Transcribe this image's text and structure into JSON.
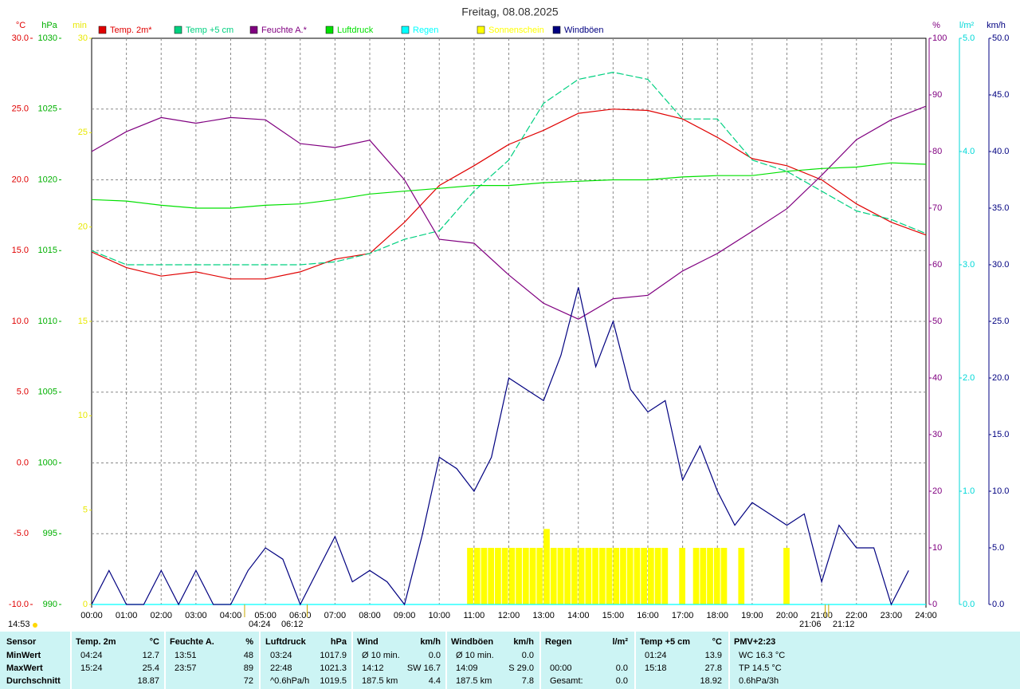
{
  "chart_data": {
    "type": "line",
    "title": "Freitag, 08.08.2025",
    "grid": true,
    "xlim": [
      0,
      24
    ],
    "xticks": [
      {
        "value": 0,
        "label": "00:00"
      },
      {
        "value": 1,
        "label": "01:00"
      },
      {
        "value": 2,
        "label": "02:00"
      },
      {
        "value": 3,
        "label": "03:00"
      },
      {
        "value": 4,
        "label": "04:00"
      },
      {
        "value": 5,
        "label": "05:00"
      },
      {
        "value": 6,
        "label": "06:00"
      },
      {
        "value": 7,
        "label": "07:00"
      },
      {
        "value": 8,
        "label": "08:00"
      },
      {
        "value": 9,
        "label": "09:00"
      },
      {
        "value": 10,
        "label": "10:00"
      },
      {
        "value": 11,
        "label": "11:00"
      },
      {
        "value": 12,
        "label": "12:00"
      },
      {
        "value": 13,
        "label": "13:00"
      },
      {
        "value": 14,
        "label": "14:00"
      },
      {
        "value": 15,
        "label": "15:00"
      },
      {
        "value": 16,
        "label": "16:00"
      },
      {
        "value": 17,
        "label": "17:00"
      },
      {
        "value": 18,
        "label": "18:00"
      },
      {
        "value": 19,
        "label": "19:00"
      },
      {
        "value": 20,
        "label": "20:00"
      },
      {
        "value": 21,
        "label": "21:00"
      },
      {
        "value": 22,
        "label": "22:00"
      },
      {
        "value": 23,
        "label": "23:00"
      },
      {
        "value": 24,
        "label": "24:00"
      }
    ],
    "x": [
      0,
      1,
      2,
      3,
      4,
      5,
      6,
      7,
      8,
      9,
      10,
      11,
      12,
      13,
      14,
      15,
      16,
      17,
      18,
      19,
      20,
      21,
      22,
      23,
      24
    ],
    "axes": {
      "temp": {
        "title": "°C",
        "side": "left",
        "color": "#e00000",
        "ylim": [
          -10,
          30
        ],
        "yticks": [
          {
            "value": -10,
            "label": "-10.0"
          },
          {
            "value": -5,
            "label": "-5.0"
          },
          {
            "value": 0,
            "label": "0.0"
          },
          {
            "value": 5,
            "label": "5.0"
          },
          {
            "value": 10,
            "label": "10.0"
          },
          {
            "value": 15,
            "label": "15.0"
          },
          {
            "value": 20,
            "label": "20.0"
          },
          {
            "value": 25,
            "label": "25.0"
          },
          {
            "value": 30,
            "label": "30.0"
          }
        ]
      },
      "press": {
        "title": "hPa",
        "side": "left",
        "color": "#00b000",
        "ylim": [
          990,
          1030
        ],
        "yticks": [
          990,
          995,
          1000,
          1005,
          1010,
          1015,
          1020,
          1025,
          1030
        ]
      },
      "sun": {
        "title": "min",
        "side": "left",
        "color": "#e8e800",
        "ylim": [
          0,
          30
        ],
        "yticks": [
          0,
          5,
          10,
          15,
          20,
          25,
          30
        ]
      },
      "hum": {
        "title": "%",
        "side": "right",
        "color": "#800080",
        "ylim": [
          0,
          100
        ],
        "yticks": [
          0,
          10,
          20,
          30,
          40,
          50,
          60,
          70,
          80,
          90,
          100
        ]
      },
      "rain": {
        "title": "l/m²",
        "side": "right",
        "color": "#00d8d8",
        "ylim": [
          0,
          5
        ],
        "yticks": [
          {
            "value": 0,
            "label": "0.0"
          },
          {
            "value": 1,
            "label": "1.0"
          },
          {
            "value": 2,
            "label": "2.0"
          },
          {
            "value": 3,
            "label": "3.0"
          },
          {
            "value": 4,
            "label": "4.0"
          },
          {
            "value": 5,
            "label": "5.0"
          }
        ]
      },
      "wind": {
        "title": "km/h",
        "side": "right",
        "color": "#000080",
        "ylim": [
          0,
          50
        ],
        "yticks": [
          {
            "value": 0,
            "label": "0.0"
          },
          {
            "value": 5,
            "label": "5.0"
          },
          {
            "value": 10,
            "label": "10.0"
          },
          {
            "value": 15,
            "label": "15.0"
          },
          {
            "value": 20,
            "label": "20.0"
          },
          {
            "value": 25,
            "label": "25.0"
          },
          {
            "value": 30,
            "label": "30.0"
          },
          {
            "value": 35,
            "label": "35.0"
          },
          {
            "value": 40,
            "label": "40.0"
          },
          {
            "value": 45,
            "label": "45.0"
          },
          {
            "value": 50,
            "label": "50.0"
          }
        ]
      }
    },
    "series": [
      {
        "name": "Temp. 2m*",
        "color": "#e00000",
        "axis": "temp",
        "style": "line",
        "values": [
          14.9,
          13.8,
          13.2,
          13.5,
          13.0,
          13.0,
          13.5,
          14.4,
          14.8,
          17.0,
          19.6,
          21.0,
          22.5,
          23.5,
          24.7,
          25.0,
          24.9,
          24.3,
          23.0,
          21.5,
          21.0,
          20.0,
          18.3,
          17.0,
          16.1
        ]
      },
      {
        "name": "Temp +5 cm",
        "color": "#00d080",
        "axis": "temp",
        "style": "dashed",
        "values": [
          15.0,
          14.0,
          14.0,
          14.0,
          14.0,
          14.0,
          14.0,
          14.2,
          14.8,
          15.8,
          16.4,
          19.2,
          21.4,
          25.4,
          27.1,
          27.6,
          27.1,
          24.3,
          24.3,
          21.4,
          20.6,
          19.2,
          17.8,
          17.2,
          16.2
        ]
      },
      {
        "name": "Feuchte A.*",
        "color": "#800080",
        "axis": "hum",
        "style": "line",
        "values": [
          80,
          83.5,
          86,
          85,
          86,
          85.6,
          81.4,
          80.7,
          82,
          75,
          64.5,
          63.8,
          58.2,
          53.2,
          50.4,
          54,
          54.6,
          58.9,
          62,
          65.9,
          69.9,
          75.8,
          82.1,
          85.6,
          88
        ]
      },
      {
        "name": "Luftdruck",
        "color": "#00e000",
        "axis": "press",
        "style": "line",
        "values": [
          1018.6,
          1018.5,
          1018.2,
          1018.0,
          1018.0,
          1018.2,
          1018.3,
          1018.6,
          1019.0,
          1019.2,
          1019.4,
          1019.6,
          1019.6,
          1019.8,
          1019.9,
          1020.0,
          1020.0,
          1020.2,
          1020.3,
          1020.3,
          1020.6,
          1020.8,
          1020.9,
          1021.2,
          1021.1
        ]
      },
      {
        "name": "Regen",
        "color": "#00ffff",
        "axis": "rain",
        "style": "line",
        "values": [
          0,
          0,
          0,
          0,
          0,
          0,
          0,
          0,
          0,
          0,
          0,
          0,
          0,
          0,
          0,
          0,
          0,
          0,
          0,
          0,
          0,
          0,
          0,
          0,
          0
        ]
      },
      {
        "name": "Sonnenschein",
        "color": "#ffff00",
        "axis": "sun",
        "style": "bar",
        "width": 0.2,
        "x": [
          10.8,
          11.0,
          11.2,
          11.4,
          11.6,
          11.8,
          12.0,
          12.2,
          12.4,
          12.6,
          12.8,
          13.0,
          13.2,
          13.4,
          13.6,
          13.8,
          14.0,
          14.2,
          14.4,
          14.6,
          14.8,
          15.0,
          15.2,
          15.4,
          15.6,
          15.8,
          16.0,
          16.2,
          16.4,
          16.9,
          17.3,
          17.5,
          17.7,
          17.9,
          18.1,
          18.6,
          19.9
        ],
        "values": [
          3,
          3,
          3,
          3,
          3,
          3,
          3,
          3,
          3,
          3,
          3,
          4,
          3,
          3,
          3,
          3,
          3,
          3,
          3,
          3,
          3,
          3,
          3,
          3,
          3,
          3,
          3,
          3,
          3,
          3,
          3,
          3,
          3,
          3,
          3,
          3,
          3
        ]
      },
      {
        "name": "Windböen",
        "color": "#000080",
        "axis": "wind",
        "style": "line",
        "x": [
          0,
          0.5,
          1,
          1.5,
          2,
          2.5,
          3,
          3.5,
          4,
          4.5,
          5,
          5.5,
          6,
          6.5,
          7,
          7.5,
          8,
          8.5,
          9,
          9.5,
          10,
          10.5,
          11,
          11.5,
          12,
          12.5,
          13,
          13.5,
          14,
          14.5,
          15,
          15.5,
          16,
          16.5,
          17,
          17.5,
          18,
          18.5,
          19,
          19.5,
          20,
          20.5,
          21,
          21.5,
          22,
          22.5,
          23,
          23.5
        ],
        "values": [
          0,
          3,
          0,
          0,
          3,
          0,
          3,
          0,
          0,
          3,
          5,
          4,
          0,
          3,
          6,
          2,
          3,
          2,
          0,
          6,
          13,
          12,
          10,
          13,
          20,
          19,
          18,
          22,
          28,
          21,
          25,
          19,
          17,
          18,
          11,
          14,
          10,
          7,
          9,
          8,
          7,
          8,
          2,
          7,
          5,
          5,
          0,
          3
        ]
      }
    ],
    "timestamp": "14:53",
    "annotations": [
      {
        "x": 4.4,
        "text": "04:24"
      },
      {
        "x": 6.2,
        "text": "06:12"
      },
      {
        "x": 21.1,
        "text": "21:06"
      },
      {
        "x": 21.2,
        "text": "21:12"
      }
    ]
  },
  "summary_table": {
    "header": [
      {
        "title": "Sensor"
      },
      {
        "title": "Temp. 2m",
        "unit": "°C"
      },
      {
        "title": "Feuchte A.",
        "unit": "%"
      },
      {
        "title": "Luftdruck",
        "unit": "hPa"
      },
      {
        "title": "Wind",
        "unit": "km/h"
      },
      {
        "title": "Windböen",
        "unit": "km/h"
      },
      {
        "title": "Regen",
        "unit": "l/m²"
      },
      {
        "title": "Temp +5 cm",
        "unit": "°C"
      },
      {
        "title": "PMV+2:23"
      }
    ],
    "rows": [
      [
        {
          "time": "MinWert"
        },
        {
          "time": "04:24",
          "value": "12.7"
        },
        {
          "time": "13:51",
          "value": "48"
        },
        {
          "time": "03:24",
          "value": "1017.9"
        },
        {
          "time": "Ø 10 min.",
          "value": "0.0"
        },
        {
          "time": "Ø 10 min.",
          "value": "0.0"
        },
        {},
        {
          "time": "01:24",
          "value": "13.9"
        },
        {
          "time": "WC 16.3 °C"
        }
      ],
      [
        {
          "time": "MaxWert"
        },
        {
          "time": "15:24",
          "value": "25.4"
        },
        {
          "time": "23:57",
          "value": "89"
        },
        {
          "time": "22:48",
          "value": "1021.3"
        },
        {
          "time": "14:12",
          "value": "SW 16.7"
        },
        {
          "time": "14:09",
          "value": "S 29.0"
        },
        {
          "time": "00:00",
          "value": "0.0"
        },
        {
          "time": "15:18",
          "value": "27.8"
        },
        {
          "time": "TP 14.5 °C"
        }
      ],
      [
        {
          "time": "Durchschnitt"
        },
        {
          "value": "18.87"
        },
        {
          "value": "72"
        },
        {
          "time": "^0.6hPa/h",
          "value": "1019.5"
        },
        {
          "time": "187.5 km",
          "value": "4.4"
        },
        {
          "time": "187.5 km",
          "value": "7.8"
        },
        {
          "time": "Gesamt:",
          "value": "0.0"
        },
        {
          "value": "18.92"
        },
        {
          "time": "0.6hPa/3h"
        }
      ]
    ]
  }
}
